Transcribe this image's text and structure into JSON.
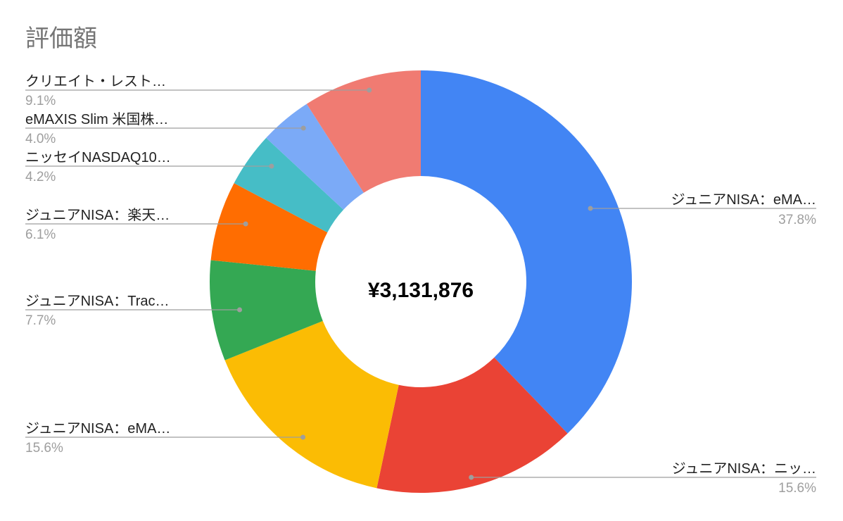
{
  "chart_data": {
    "type": "pie",
    "donut": true,
    "title": "評価額",
    "center_label": "¥3,131,876",
    "slices": [
      {
        "label": "ジュニアNISA：eMA…",
        "value": 37.8,
        "percent_label": "37.8%",
        "color": "#4285F4"
      },
      {
        "label": "ジュニアNISA：ニッ…",
        "value": 15.6,
        "percent_label": "15.6%",
        "color": "#EA4335"
      },
      {
        "label": "ジュニアNISA：eMA…",
        "value": 15.6,
        "percent_label": "15.6%",
        "color": "#FBBC04"
      },
      {
        "label": "ジュニアNISA：Trac…",
        "value": 7.7,
        "percent_label": "7.7%",
        "color": "#34A853"
      },
      {
        "label": "ジュニアNISA：楽天…",
        "value": 6.1,
        "percent_label": "6.1%",
        "color": "#FF6D01"
      },
      {
        "label": "ニッセイNASDAQ10…",
        "value": 4.2,
        "percent_label": "4.2%",
        "color": "#46BDC6"
      },
      {
        "label": "eMAXIS Slim 米国株…",
        "value": 4.0,
        "percent_label": "4.0%",
        "color": "#7BAAF7"
      },
      {
        "label": "クリエイト・レスト…",
        "value": 9.1,
        "percent_label": "9.1%",
        "color": "#F07B72"
      }
    ],
    "legend": "none"
  }
}
